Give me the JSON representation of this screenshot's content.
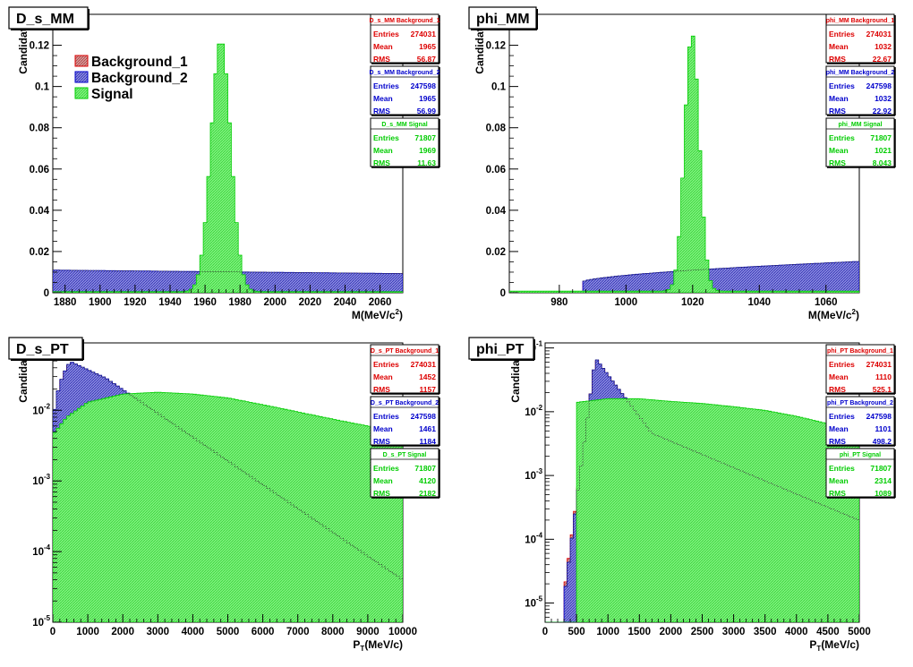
{
  "panels": [
    {
      "title": "D_s_MM",
      "ylabel": "Candidates",
      "xlabel_main": "M(MeV/c",
      "xlabel_sup": "2",
      "xlabel_tail": ")",
      "legend": [
        "Background_1",
        "Background_2",
        "Signal"
      ],
      "stats": [
        {
          "name": "D_s_MM Background_1",
          "entries_label": "Entries",
          "entries": "274031",
          "mean_label": "Mean",
          "mean": "1965",
          "rms_label": "RMS",
          "rms": "56.87"
        },
        {
          "name": "D_s_MM Background_2",
          "entries_label": "Entries",
          "entries": "247598",
          "mean_label": "Mean",
          "mean": "1965",
          "rms_label": "RMS",
          "rms": "56.99"
        },
        {
          "name": "D_s_MM Signal",
          "entries_label": "Entries",
          "entries": "71807",
          "mean_label": "Mean",
          "mean": "1969",
          "rms_label": "RMS",
          "rms": "11.63"
        }
      ]
    },
    {
      "title": "phi_MM",
      "ylabel": "Candidates",
      "xlabel_main": "M(MeV/c",
      "xlabel_sup": "2",
      "xlabel_tail": ")",
      "legend": [],
      "stats": [
        {
          "name": "phi_MM Background_1",
          "entries_label": "Entries",
          "entries": "274031",
          "mean_label": "Mean",
          "mean": "1032",
          "rms_label": "RMS",
          "rms": "22.67"
        },
        {
          "name": "phi_MM Background_2",
          "entries_label": "Entries",
          "entries": "247598",
          "mean_label": "Mean",
          "mean": "1032",
          "rms_label": "RMS",
          "rms": "22.92"
        },
        {
          "name": "phi_MM Signal",
          "entries_label": "Entries",
          "entries": "71807",
          "mean_label": "Mean",
          "mean": "1021",
          "rms_label": "RMS",
          "rms": "8.043"
        }
      ]
    },
    {
      "title": "D_s_PT",
      "ylabel": "Candidates",
      "xlabel_main": "P",
      "xlabel_sub": "T",
      "xlabel_tail": "(MeV/c)",
      "legend": [],
      "stats": [
        {
          "name": "D_s_PT Background_1",
          "entries_label": "Entries",
          "entries": "274031",
          "mean_label": "Mean",
          "mean": "1452",
          "rms_label": "RMS",
          "rms": "1157"
        },
        {
          "name": "D_s_PT Background_2",
          "entries_label": "Entries",
          "entries": "247598",
          "mean_label": "Mean",
          "mean": "1461",
          "rms_label": "RMS",
          "rms": "1184"
        },
        {
          "name": "D_s_PT Signal",
          "entries_label": "Entries",
          "entries": "71807",
          "mean_label": "Mean",
          "mean": "4120",
          "rms_label": "RMS",
          "rms": "2182"
        }
      ]
    },
    {
      "title": "phi_PT",
      "ylabel": "Candidates",
      "xlabel_main": "P",
      "xlabel_sub": "T",
      "xlabel_tail": "(MeV/c)",
      "legend": [],
      "stats": [
        {
          "name": "phi_PT Background_1",
          "entries_label": "Entries",
          "entries": "274031",
          "mean_label": "Mean",
          "mean": "1110",
          "rms_label": "RMS",
          "rms": "525.1"
        },
        {
          "name": "phi_PT Background_2",
          "entries_label": "Entries",
          "entries": "247598",
          "mean_label": "Mean",
          "mean": "1101",
          "rms_label": "RMS",
          "rms": "498.2"
        },
        {
          "name": "phi_PT Signal",
          "entries_label": "Entries",
          "entries": "71807",
          "mean_label": "Mean",
          "mean": "2314",
          "rms_label": "RMS",
          "rms": "1089"
        }
      ]
    }
  ],
  "colors": {
    "background_1": "#dd0000",
    "background_2": "#0000cc",
    "signal": "#00cc00",
    "signal_fill": "#66ee66",
    "bg1_fill": "#cc7777",
    "bg2_fill": "#6666cc"
  },
  "chart_data": [
    {
      "type": "histogram",
      "title": "D_s_MM",
      "xlabel": "M(MeV/c^2)",
      "ylabel": "Candidates",
      "xlim": [
        1873,
        2073
      ],
      "ylim": [
        0,
        0.135
      ],
      "yscale": "linear",
      "x_ticks": [
        1880,
        1900,
        1920,
        1940,
        1960,
        1980,
        2000,
        2020,
        2040,
        2060
      ],
      "y_ticks": [
        0,
        0.02,
        0.04,
        0.06,
        0.08,
        0.1,
        0.12
      ],
      "y_tick_labels": [
        "0",
        "0.02",
        "0.04",
        "0.06",
        "0.08",
        "0.1",
        "0.12"
      ],
      "grid": false,
      "legend_position": "top-left",
      "series": [
        {
          "name": "Background_1",
          "shape": "flat",
          "start": 0.0108,
          "end": 0.0092
        },
        {
          "name": "Background_2",
          "shape": "flat",
          "start": 0.011,
          "end": 0.0093
        },
        {
          "name": "Signal",
          "shape": "gauss",
          "mean": 1969,
          "sigma": 5.6,
          "peak": 0.122,
          "base": 0.0005
        }
      ]
    },
    {
      "type": "histogram",
      "title": "phi_MM",
      "xlabel": "M(MeV/c^2)",
      "ylabel": "Candidates",
      "xlim": [
        965,
        1070
      ],
      "ylim": [
        0,
        0.135
      ],
      "yscale": "linear",
      "x_ticks": [
        980,
        1000,
        1020,
        1040,
        1060
      ],
      "y_ticks": [
        0,
        0.02,
        0.04,
        0.06,
        0.08,
        0.1,
        0.12
      ],
      "y_tick_labels": [
        "0",
        "0.02",
        "0.04",
        "0.06",
        "0.08",
        "0.1",
        "0.12"
      ],
      "grid": false,
      "series": [
        {
          "name": "Background_1",
          "shape": "ramp",
          "begin": 987,
          "start": 0.0048,
          "end": 0.0148
        },
        {
          "name": "Background_2",
          "shape": "ramp",
          "begin": 987,
          "start": 0.0052,
          "end": 0.0152
        },
        {
          "name": "Signal",
          "shape": "gauss",
          "mean": 1019.8,
          "sigma": 2.2,
          "peak": 0.125,
          "base": 0.0008
        }
      ]
    },
    {
      "type": "histogram",
      "title": "D_s_PT",
      "xlabel": "P_T(MeV/c)",
      "ylabel": "Candidates",
      "xlim": [
        0,
        10000
      ],
      "ylim": [
        1e-05,
        0.09
      ],
      "yscale": "log",
      "x_ticks": [
        0,
        1000,
        2000,
        3000,
        4000,
        5000,
        6000,
        7000,
        8000,
        9000,
        10000
      ],
      "y_ticks": [
        1e-05,
        0.0001,
        0.001,
        0.01
      ],
      "y_tick_labels": [
        "10",
        "10",
        "10",
        "10"
      ],
      "y_tick_exponents": [
        "-5",
        "-4",
        "-3",
        "-2"
      ],
      "grid": false,
      "series": [
        {
          "name": "Background_1",
          "shape": "ptbg",
          "rise": 500,
          "peak": 0.047,
          "decay": 880,
          "start": 0.006,
          "end": 0.0001
        },
        {
          "name": "Background_2",
          "shape": "ptbg",
          "rise": 500,
          "peak": 0.049,
          "decay": 880,
          "start": 0.006,
          "end": 0.0001
        },
        {
          "name": "Signal",
          "shape": "ptsig",
          "points": [
            [
              0,
              0.0045
            ],
            [
              400,
              0.008
            ],
            [
              1000,
              0.013
            ],
            [
              2000,
              0.017
            ],
            [
              3000,
              0.018
            ],
            [
              4000,
              0.017
            ],
            [
              5000,
              0.015
            ],
            [
              6000,
              0.012
            ],
            [
              7000,
              0.0095
            ],
            [
              8000,
              0.0075
            ],
            [
              9000,
              0.006
            ],
            [
              10000,
              0.005
            ]
          ]
        }
      ]
    },
    {
      "type": "histogram",
      "title": "phi_PT",
      "xlabel": "P_T(MeV/c)",
      "ylabel": "Candidates",
      "xlim": [
        0,
        5000
      ],
      "ylim": [
        5e-06,
        0.12
      ],
      "yscale": "log",
      "x_ticks": [
        0,
        500,
        1000,
        1500,
        2000,
        2500,
        3000,
        3500,
        4000,
        4500,
        5000
      ],
      "y_ticks": [
        1e-05,
        0.0001,
        0.001,
        0.01,
        0.1
      ],
      "y_tick_labels": [
        "10",
        "10",
        "10",
        "10",
        "10"
      ],
      "y_tick_exponents": [
        "-5",
        "-4",
        "-3",
        "-2",
        "-1"
      ],
      "grid": false,
      "series": [
        {
          "name": "Background_1",
          "shape": "ptbg2",
          "onset": 280,
          "peakx": 800,
          "peak": 0.068,
          "end": 0.00015
        },
        {
          "name": "Background_2",
          "shape": "ptbg2",
          "onset": 290,
          "peakx": 800,
          "peak": 0.07,
          "end": 0.00015
        },
        {
          "name": "Signal",
          "shape": "ptsig",
          "onset": 500,
          "points": [
            [
              500,
              0.014
            ],
            [
              1000,
              0.016
            ],
            [
              1500,
              0.016
            ],
            [
              2000,
              0.0145
            ],
            [
              2500,
              0.0135
            ],
            [
              3000,
              0.012
            ],
            [
              3500,
              0.0105
            ],
            [
              4000,
              0.0085
            ],
            [
              4500,
              0.0065
            ],
            [
              5000,
              0.005
            ]
          ]
        }
      ]
    }
  ]
}
